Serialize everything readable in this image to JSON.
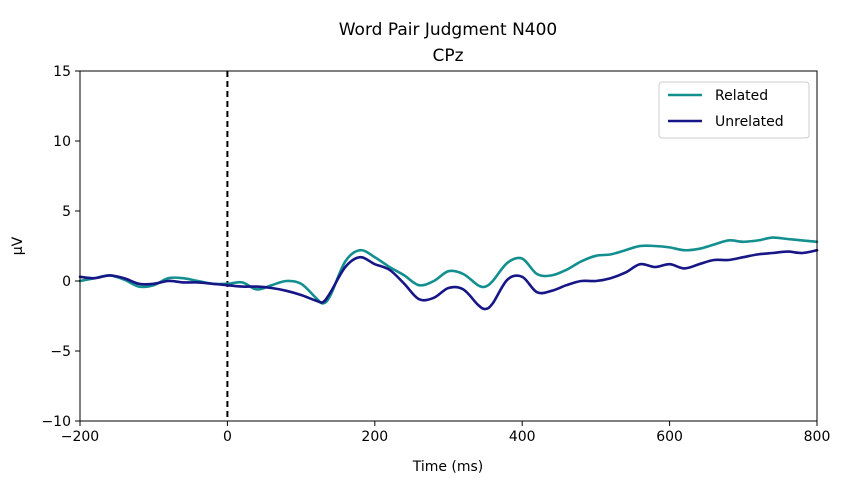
{
  "chart_data": {
    "type": "line",
    "title": "Word Pair Judgment N400",
    "subtitle": "CPz",
    "xlabel": "Time (ms)",
    "ylabel": "µV",
    "xlim": [
      -200,
      800
    ],
    "ylim": [
      -10,
      15
    ],
    "xticks": [
      -200,
      0,
      200,
      400,
      600,
      800
    ],
    "xtick_labels": [
      "−200",
      "0",
      "200",
      "400",
      "600",
      "800"
    ],
    "yticks": [
      -10,
      -5,
      0,
      5,
      10,
      15
    ],
    "ytick_labels": [
      "−10",
      "−5",
      "0",
      "5",
      "10",
      "15"
    ],
    "grid": false,
    "legend_position": "top-right",
    "vline": {
      "x": 0,
      "style": "dashed",
      "color": "#000000"
    },
    "series": [
      {
        "name": "Related",
        "color": "#148f8f",
        "x": [
          -200,
          -180,
          -160,
          -140,
          -120,
          -100,
          -80,
          -60,
          -40,
          -20,
          0,
          20,
          40,
          60,
          80,
          100,
          120,
          130,
          140,
          160,
          180,
          200,
          220,
          240,
          260,
          280,
          300,
          320,
          340,
          350,
          360,
          380,
          400,
          420,
          440,
          460,
          480,
          500,
          520,
          540,
          560,
          580,
          600,
          620,
          640,
          660,
          680,
          700,
          720,
          740,
          760,
          780,
          800
        ],
        "values": [
          0.0,
          0.2,
          0.4,
          0.1,
          -0.4,
          -0.3,
          0.2,
          0.2,
          0.0,
          -0.2,
          -0.2,
          -0.1,
          -0.6,
          -0.3,
          0.0,
          -0.2,
          -1.2,
          -1.6,
          -1.0,
          1.4,
          2.2,
          1.7,
          1.0,
          0.4,
          -0.3,
          0.0,
          0.7,
          0.5,
          -0.3,
          -0.4,
          0.0,
          1.3,
          1.6,
          0.5,
          0.4,
          0.8,
          1.4,
          1.8,
          1.9,
          2.2,
          2.5,
          2.5,
          2.4,
          2.2,
          2.3,
          2.6,
          2.9,
          2.8,
          2.9,
          3.1,
          3.0,
          2.9,
          2.8
        ]
      },
      {
        "name": "Unrelated",
        "color": "#161686",
        "x": [
          -200,
          -180,
          -160,
          -140,
          -120,
          -100,
          -80,
          -60,
          -40,
          -20,
          0,
          20,
          40,
          60,
          80,
          100,
          120,
          130,
          140,
          160,
          180,
          200,
          220,
          240,
          260,
          280,
          300,
          320,
          340,
          350,
          360,
          380,
          400,
          420,
          440,
          460,
          480,
          500,
          520,
          540,
          560,
          580,
          600,
          620,
          640,
          660,
          680,
          700,
          720,
          740,
          760,
          780,
          800
        ],
        "values": [
          0.3,
          0.2,
          0.4,
          0.2,
          -0.2,
          -0.2,
          0.0,
          -0.1,
          -0.1,
          -0.2,
          -0.3,
          -0.4,
          -0.4,
          -0.5,
          -0.7,
          -1.0,
          -1.4,
          -1.5,
          -0.8,
          1.0,
          1.7,
          1.2,
          0.8,
          -0.2,
          -1.3,
          -1.2,
          -0.5,
          -0.6,
          -1.7,
          -2.0,
          -1.6,
          0.1,
          0.3,
          -0.8,
          -0.7,
          -0.3,
          0.0,
          0.0,
          0.2,
          0.6,
          1.2,
          1.0,
          1.2,
          0.9,
          1.2,
          1.5,
          1.5,
          1.7,
          1.9,
          2.0,
          2.1,
          2.0,
          2.2
        ]
      }
    ]
  }
}
